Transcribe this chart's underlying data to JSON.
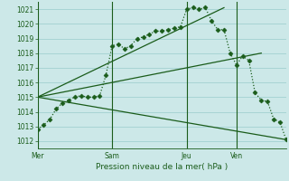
{
  "background_color": "#cce8e8",
  "plot_bg_color": "#cce8e8",
  "grid_color": "#99cccc",
  "line_color": "#1a5c1a",
  "xlabel": "Pression niveau de la mer( hPa )",
  "ylim": [
    1011.5,
    1021.5
  ],
  "yticks": [
    1012,
    1013,
    1014,
    1015,
    1016,
    1017,
    1018,
    1019,
    1020,
    1021
  ],
  "xtick_labels": [
    "Mer",
    "Sam",
    "Jeu",
    "Ven"
  ],
  "xtick_positions": [
    0,
    24,
    48,
    64
  ],
  "xlim": [
    0,
    80
  ],
  "series1_x": [
    0,
    2,
    4,
    6,
    8,
    10,
    12,
    14,
    16,
    18,
    20,
    22,
    24,
    26,
    28,
    30,
    32,
    34,
    36,
    38,
    40,
    42,
    44,
    46,
    48,
    50,
    52,
    54,
    56,
    58,
    60,
    62,
    64,
    66,
    68,
    70,
    72,
    74,
    76,
    78,
    80
  ],
  "series1_y": [
    1012.8,
    1013.1,
    1013.5,
    1014.2,
    1014.6,
    1014.8,
    1015.0,
    1015.1,
    1015.0,
    1015.0,
    1015.1,
    1016.5,
    1018.5,
    1018.6,
    1018.3,
    1018.5,
    1019.0,
    1019.1,
    1019.3,
    1019.5,
    1019.5,
    1019.6,
    1019.7,
    1019.8,
    1021.0,
    1021.1,
    1021.0,
    1021.1,
    1020.2,
    1019.6,
    1019.6,
    1018.0,
    1017.2,
    1017.8,
    1017.5,
    1015.3,
    1014.8,
    1014.7,
    1013.5,
    1013.3,
    1012.1
  ],
  "line1_x": [
    0,
    80
  ],
  "line1_y": [
    1015.0,
    1012.1
  ],
  "line2_x": [
    0,
    72
  ],
  "line2_y": [
    1015.0,
    1018.0
  ],
  "line3_x": [
    0,
    60
  ],
  "line3_y": [
    1015.0,
    1021.1
  ],
  "vlines_x": [
    0,
    24,
    48,
    64
  ],
  "marker_size": 2.5,
  "line_width": 0.9
}
